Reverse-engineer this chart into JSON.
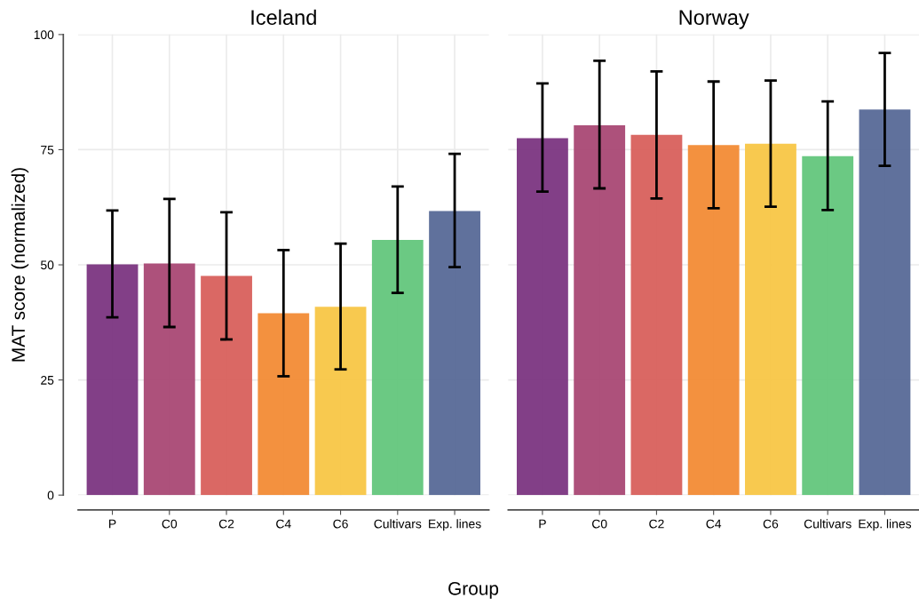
{
  "chart_data": [
    {
      "type": "bar",
      "title": "Iceland",
      "ylabel": "MAT score (normalized)",
      "xlabel": "Group",
      "categories": [
        "P",
        "C0",
        "C2",
        "C4",
        "C6",
        "Cultivars",
        "Exp. lines"
      ],
      "values": [
        50.1,
        50.3,
        47.6,
        39.5,
        40.9,
        55.4,
        61.7
      ],
      "errors": [
        [
          38.6,
          61.8
        ],
        [
          36.5,
          64.3
        ],
        [
          33.8,
          61.4
        ],
        [
          25.8,
          53.2
        ],
        [
          27.3,
          54.6
        ],
        [
          43.9,
          67.0
        ],
        [
          49.5,
          74.1
        ]
      ],
      "colors": [
        "#7b3581",
        "#a94874",
        "#d8605c",
        "#f28b35",
        "#f8c646",
        "#63c67c",
        "#576997"
      ],
      "ylim": [
        0,
        100
      ],
      "yticks": [
        0,
        25,
        50,
        75,
        100
      ],
      "grid": true
    },
    {
      "type": "bar",
      "title": "Norway",
      "categories": [
        "P",
        "C0",
        "C2",
        "C4",
        "C6",
        "Cultivars",
        "Exp. lines"
      ],
      "values": [
        77.5,
        80.3,
        78.2,
        76.0,
        76.3,
        73.6,
        83.7
      ],
      "errors": [
        [
          65.9,
          89.4
        ],
        [
          66.6,
          94.3
        ],
        [
          64.4,
          92.0
        ],
        [
          62.3,
          89.8
        ],
        [
          62.6,
          90.0
        ],
        [
          61.9,
          85.5
        ],
        [
          71.5,
          96.0
        ]
      ],
      "colors": [
        "#7b3581",
        "#a94874",
        "#d8605c",
        "#f28b35",
        "#f8c646",
        "#63c67c",
        "#576997"
      ],
      "ylim": [
        0,
        100
      ],
      "yticks": [
        0,
        25,
        50,
        75,
        100
      ],
      "grid": true,
      "tick_labels": "x"
    }
  ]
}
